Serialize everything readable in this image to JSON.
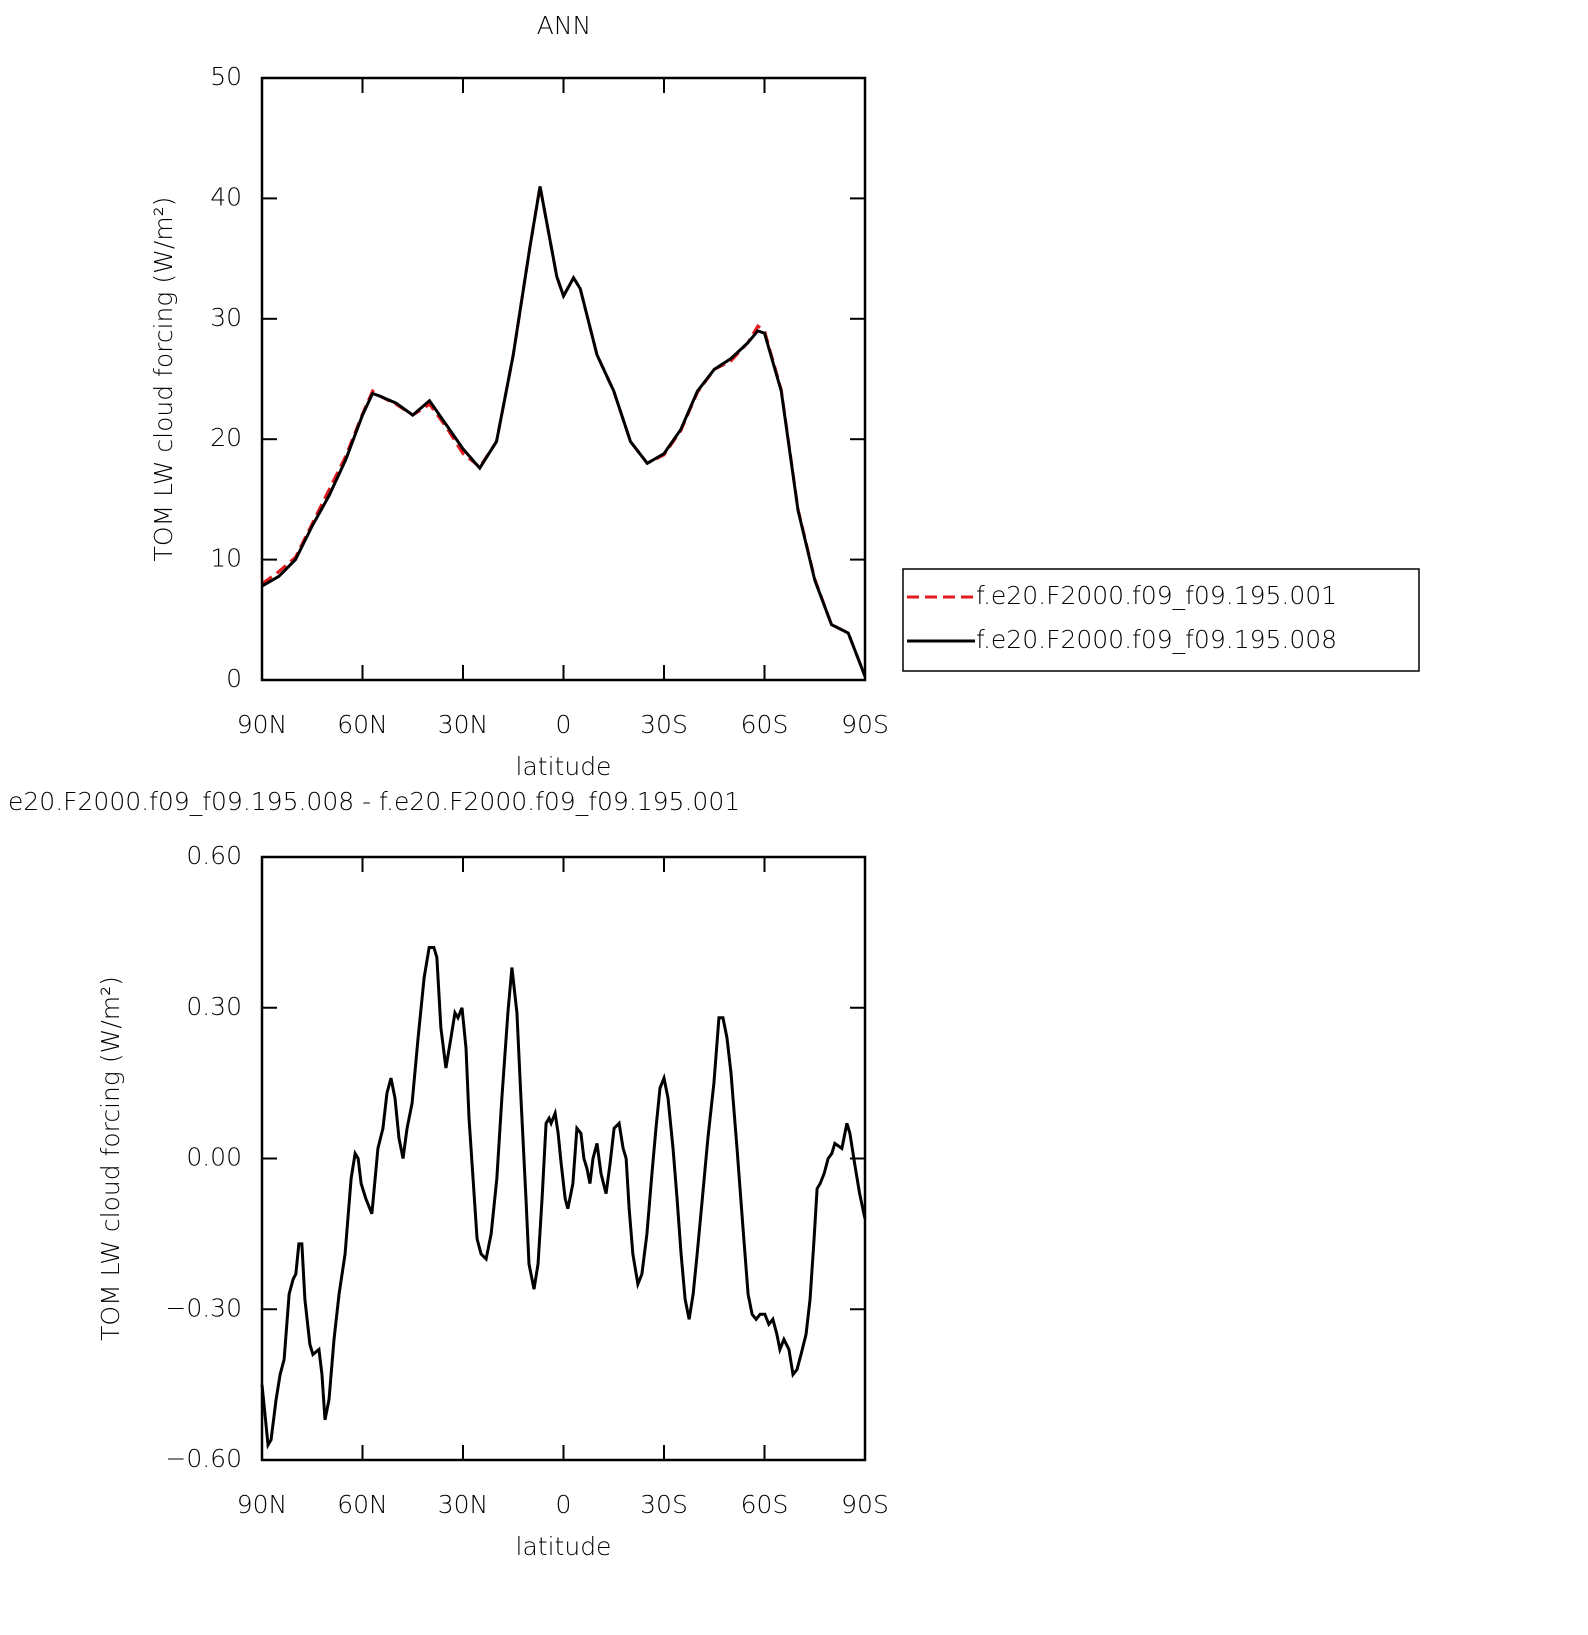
{
  "chart_data": [
    {
      "type": "line",
      "title": "ANN",
      "xlabel": "latitude",
      "ylabel": "TOM LW cloud forcing (W/m²)",
      "x": [
        90,
        85,
        80,
        75,
        70,
        65,
        60,
        57,
        55,
        50,
        45,
        40,
        35,
        30,
        25,
        20,
        15,
        10,
        7,
        5,
        2,
        0,
        -3,
        -5,
        -10,
        -15,
        -20,
        -25,
        -30,
        -35,
        -40,
        -45,
        -50,
        -55,
        -58,
        -60,
        -65,
        -70,
        -75,
        -80,
        -85,
        -90
      ],
      "series": [
        {
          "name": "f.e20.F2000.f09_f09.195.001",
          "color": "#e31a1c",
          "linestyle": "dashed",
          "values": [
            8.0,
            9.0,
            10.2,
            13.0,
            15.8,
            18.6,
            22.1,
            24.0,
            23.6,
            22.9,
            22.0,
            22.9,
            21.0,
            18.8,
            17.7,
            19.8,
            27.0,
            36.0,
            41.0,
            38.0,
            33.5,
            31.9,
            33.4,
            32.5,
            27.0,
            24.0,
            19.8,
            18.0,
            18.7,
            20.7,
            23.9,
            25.8,
            26.5,
            28.0,
            29.4,
            29.0,
            24.1,
            14.2,
            8.4,
            4.6,
            3.9,
            0.3
          ]
        },
        {
          "name": "f.e20.F2000.f09_f09.195.008",
          "color": "#000000",
          "linestyle": "solid",
          "values": [
            7.8,
            8.6,
            10.0,
            12.8,
            15.3,
            18.3,
            22.0,
            23.8,
            23.6,
            23.0,
            22.0,
            23.2,
            21.2,
            19.2,
            17.6,
            19.8,
            27.0,
            36.0,
            41.0,
            38.0,
            33.5,
            31.9,
            33.4,
            32.5,
            27.0,
            24.0,
            19.8,
            18.0,
            18.8,
            20.8,
            24.0,
            25.8,
            26.7,
            28.0,
            29.0,
            28.8,
            24.0,
            14.1,
            8.3,
            4.6,
            3.9,
            0.3
          ]
        }
      ],
      "xlim": [
        90,
        -90
      ],
      "xticks": [
        {
          "value": 90,
          "label": "90N"
        },
        {
          "value": 60,
          "label": "60N"
        },
        {
          "value": 30,
          "label": "30N"
        },
        0,
        {
          "value": -30,
          "label": "30S"
        },
        {
          "value": -60,
          "label": "60S"
        },
        {
          "value": -90,
          "label": "90S"
        }
      ],
      "ylim": [
        0,
        50
      ],
      "yticks": [
        0,
        10,
        20,
        30,
        40,
        50
      ],
      "legend": "right"
    },
    {
      "type": "line",
      "title": "e20.F2000.f09_f09.195.008 - f.e20.F2000.f09_f09.195.001",
      "xlabel": "latitude",
      "ylabel": "TOM LW cloud forcing (W/m²)",
      "x": [
        90.0,
        88.2,
        87.3,
        85.8,
        84.6,
        83.4,
        81.9,
        80.7,
        79.9,
        79.0,
        78.1,
        77.2,
        75.7,
        74.8,
        73.0,
        72.1,
        71.2,
        70.0,
        68.5,
        67.0,
        65.2,
        63.4,
        62.2,
        61.3,
        60.4,
        59.0,
        57.2,
        55.4,
        53.9,
        52.7,
        51.5,
        50.3,
        49.1,
        47.9,
        46.7,
        45.2,
        43.4,
        41.6,
        40.1,
        38.7,
        37.8,
        36.6,
        35.1,
        33.6,
        32.4,
        31.5,
        30.3,
        29.1,
        28.2,
        27.0,
        25.8,
        24.6,
        23.1,
        21.6,
        19.9,
        18.4,
        16.6,
        15.4,
        13.9,
        12.7,
        11.2,
        10.3,
        8.8,
        7.6,
        6.4,
        5.2,
        4.3,
        3.7,
        2.5,
        1.6,
        0.7,
        -0.5,
        -1.3,
        -2.8,
        -4.0,
        -5.2,
        -6.1,
        -7.0,
        -7.9,
        -8.8,
        -10.0,
        -11.2,
        -12.7,
        -13.9,
        -15.1,
        -16.6,
        -17.8,
        -18.7,
        -19.6,
        -20.7,
        -22.2,
        -23.4,
        -24.9,
        -26.4,
        -27.6,
        -28.8,
        -30.0,
        -31.2,
        -32.7,
        -33.9,
        -35.1,
        -36.3,
        -37.5,
        -38.7,
        -39.9,
        -41.3,
        -43.1,
        -44.9,
        -46.4,
        -47.6,
        -48.8,
        -50.0,
        -51.8,
        -53.6,
        -55.1,
        -56.3,
        -57.5,
        -58.7,
        -60.1,
        -61.3,
        -62.5,
        -63.7,
        -64.6,
        -65.8,
        -67.3,
        -68.5,
        -69.7,
        -70.9,
        -72.4,
        -73.6,
        -74.8,
        -75.7,
        -76.6,
        -77.8,
        -79.0,
        -80.1,
        -81.0,
        -83.1,
        -84.6,
        -85.5,
        -86.9,
        -88.4,
        -90.0
      ],
      "values": [
        -0.45,
        -0.57,
        -0.56,
        -0.48,
        -0.43,
        -0.4,
        -0.27,
        -0.24,
        -0.23,
        -0.17,
        -0.17,
        -0.28,
        -0.37,
        -0.39,
        -0.38,
        -0.43,
        -0.52,
        -0.48,
        -0.36,
        -0.27,
        -0.19,
        -0.04,
        0.01,
        0.0,
        -0.05,
        -0.08,
        -0.11,
        0.02,
        0.06,
        0.13,
        0.16,
        0.12,
        0.04,
        0.0,
        0.06,
        0.11,
        0.24,
        0.36,
        0.42,
        0.42,
        0.4,
        0.26,
        0.18,
        0.24,
        0.29,
        0.28,
        0.3,
        0.22,
        0.08,
        -0.04,
        -0.16,
        -0.19,
        -0.2,
        -0.15,
        -0.04,
        0.12,
        0.29,
        0.38,
        0.29,
        0.12,
        -0.08,
        -0.21,
        -0.26,
        -0.21,
        -0.08,
        0.07,
        0.08,
        0.07,
        0.09,
        0.05,
        -0.01,
        -0.08,
        -0.1,
        -0.05,
        0.06,
        0.05,
        0.0,
        -0.02,
        -0.05,
        0.0,
        0.03,
        -0.03,
        -0.07,
        -0.01,
        0.06,
        0.07,
        0.02,
        0.0,
        -0.1,
        -0.19,
        -0.25,
        -0.23,
        -0.15,
        -0.03,
        0.06,
        0.14,
        0.16,
        0.12,
        0.02,
        -0.08,
        -0.19,
        -0.28,
        -0.32,
        -0.27,
        -0.19,
        -0.09,
        0.04,
        0.15,
        0.28,
        0.28,
        0.24,
        0.17,
        0.02,
        -0.14,
        -0.27,
        -0.31,
        -0.32,
        -0.31,
        -0.31,
        -0.33,
        -0.32,
        -0.35,
        -0.38,
        -0.36,
        -0.38,
        -0.43,
        -0.42,
        -0.39,
        -0.35,
        -0.28,
        -0.16,
        -0.06,
        -0.05,
        -0.03,
        0.0,
        0.01,
        0.03,
        0.02,
        0.07,
        0.05,
        -0.01,
        -0.07,
        -0.12
      ],
      "color": "#000000",
      "xlim": [
        90,
        -90
      ],
      "xticks": [
        {
          "value": 90,
          "label": "90N"
        },
        {
          "value": 60,
          "label": "60N"
        },
        {
          "value": 30,
          "label": "30N"
        },
        0,
        {
          "value": -30,
          "label": "30S"
        },
        {
          "value": -60,
          "label": "60S"
        },
        {
          "value": -90,
          "label": "90S"
        }
      ],
      "ylim": [
        -0.6,
        0.6
      ],
      "yticks": [
        {
          "value": -0.6,
          "label": "−0.60"
        },
        {
          "value": -0.3,
          "label": "−0.30"
        },
        {
          "value": 0,
          "label": "0.00"
        },
        {
          "value": 0.3,
          "label": "0.30"
        },
        {
          "value": 0.6,
          "label": "0.60"
        }
      ]
    }
  ]
}
